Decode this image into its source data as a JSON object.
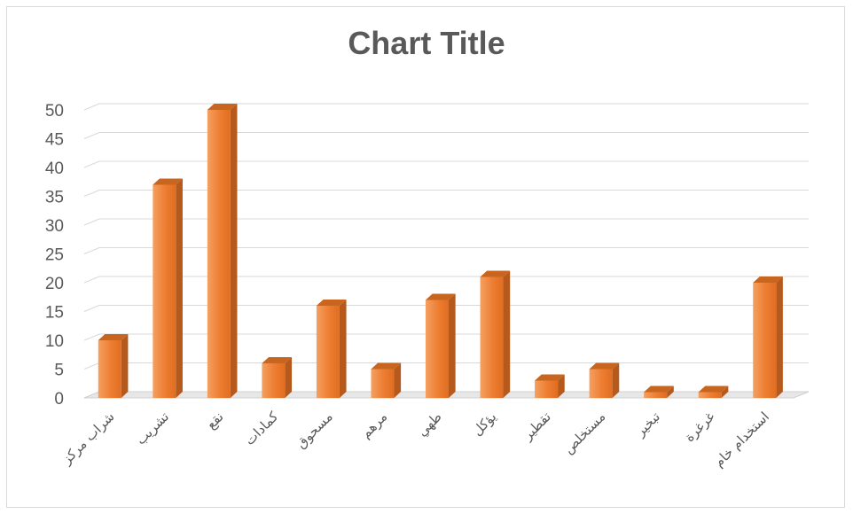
{
  "chart_data": {
    "type": "bar",
    "title": "Chart Title",
    "categories": [
      "شراب مركز",
      "تشريب",
      "نقع",
      "كمادات",
      "مسحوق",
      "مرهم",
      "طهي",
      "يؤكل",
      "تقطير",
      "مستخلص",
      "تبخير",
      "غرغرة",
      "استخدام خام"
    ],
    "series": [
      {
        "values": [
          10,
          37,
          50,
          6,
          16,
          5,
          17,
          21,
          3,
          5,
          1,
          1,
          20
        ]
      }
    ],
    "ylim": [
      0,
      50
    ],
    "yticks": [
      0,
      5,
      10,
      15,
      20,
      25,
      30,
      35,
      40,
      45,
      50
    ],
    "xlabel": "",
    "ylabel": "",
    "grid": true,
    "style": "3d-column",
    "colors": {
      "bar_front": "#ed7d31",
      "bar_side": "#b55a1c",
      "bar_top": "#c8651f",
      "grid": "#d9d9d9",
      "text": "#595959"
    }
  }
}
